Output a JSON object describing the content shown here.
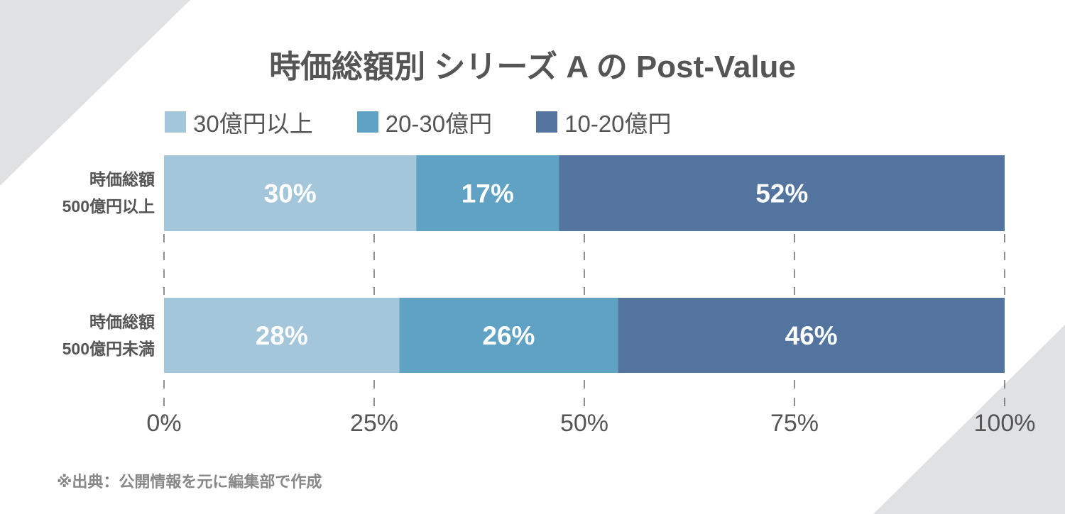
{
  "title": "時価総額別 シリーズ A の Post-Value",
  "footnote": "※出典：公開情報を元に編集部で作成",
  "colors": {
    "background_accent": "#e0e1e3",
    "text": "#555555",
    "grid": "#555555"
  },
  "chart_data": {
    "type": "bar",
    "orientation": "horizontal",
    "stacked": true,
    "title": "時価総額別 シリーズ A の Post-Value",
    "categories": [
      {
        "line1": "時価総額",
        "line2": "500億円以上"
      },
      {
        "line1": "時価総額",
        "line2": "500億円未満"
      }
    ],
    "series": [
      {
        "name": "30億円以上",
        "color": "#a3c6da",
        "values": [
          30,
          28
        ],
        "labels": [
          "30%",
          "28%"
        ]
      },
      {
        "name": "20-30億円",
        "color": "#60a2c4",
        "values": [
          17,
          26
        ],
        "labels": [
          "17%",
          "26%"
        ]
      },
      {
        "name": "10-20億円",
        "color": "#52749f",
        "values": [
          52,
          46
        ],
        "labels": [
          "52%",
          "46%"
        ]
      }
    ],
    "x_ticks": [
      "0%",
      "25%",
      "50%",
      "75%",
      "100%"
    ],
    "xlim": [
      0,
      100
    ],
    "grid": "vertical dashed",
    "legend": "top-left",
    "xlabel": "",
    "ylabel": ""
  }
}
